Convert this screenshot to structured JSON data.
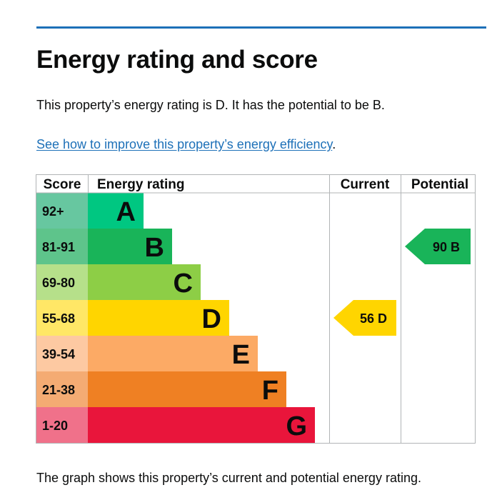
{
  "heading": "Energy rating and score",
  "summary": "This property’s energy rating is D. It has the potential to be B.",
  "link_text": "See how to improve this property’s energy efficiency",
  "link_suffix": ".",
  "footnote": "The graph shows this property’s current and potential energy rating.",
  "colors": {
    "accent_line": "#1d70b8",
    "link": "#1d70b8",
    "text": "#0b0c0c",
    "grid": "#b1b4b6"
  },
  "chart_data": {
    "type": "table",
    "columns": [
      "Score",
      "Energy rating",
      "Current",
      "Potential"
    ],
    "bands": [
      {
        "score": "92+",
        "letter": "A",
        "color": "#00c781",
        "score_color": "#67c7a0"
      },
      {
        "score": "81-91",
        "letter": "B",
        "color": "#19b459",
        "score_color": "#5ec48b"
      },
      {
        "score": "69-80",
        "letter": "C",
        "color": "#8dce46",
        "score_color": "#b6e08a"
      },
      {
        "score": "55-68",
        "letter": "D",
        "color": "#ffd500",
        "score_color": "#ffe766"
      },
      {
        "score": "39-54",
        "letter": "E",
        "color": "#fcaa65",
        "score_color": "#fdc9a2"
      },
      {
        "score": "21-38",
        "letter": "F",
        "color": "#ef8023",
        "score_color": "#f4ab73"
      },
      {
        "score": "1-20",
        "letter": "G",
        "color": "#e9153b",
        "score_color": "#f0718a"
      }
    ],
    "current": {
      "score": 56,
      "letter": "D",
      "label": "56 D",
      "color": "#ffd500"
    },
    "potential": {
      "score": 90,
      "letter": "B",
      "label": "90 B",
      "color": "#19b459"
    }
  }
}
